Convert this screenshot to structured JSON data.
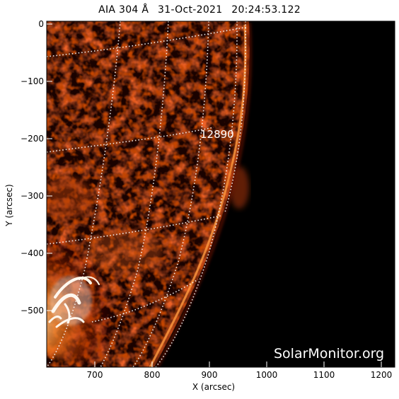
{
  "title": {
    "instrument": "AIA 304 Å",
    "date": "31-Oct-2021",
    "time": "20:24:53.122"
  },
  "axes": {
    "xlabel": "X (arcsec)",
    "ylabel": "Y (arcsec)",
    "xticks": [
      "700",
      "800",
      "900",
      "1000",
      "1100",
      "1200"
    ],
    "yticks": [
      "0",
      "−100",
      "−200",
      "−300",
      "−400",
      "−500"
    ],
    "xlim": [
      617,
      1222
    ],
    "ylim": [
      -598,
      5
    ]
  },
  "image": {
    "description_tag": "solar-limb-304A",
    "background_color": "#000000",
    "disk_colormap": [
      "#050000",
      "#3a0600",
      "#8a1800",
      "#d25a10",
      "#ffb070",
      "#ffffff"
    ]
  },
  "region_label": "12890",
  "watermark": "SolarMonitor.org"
}
